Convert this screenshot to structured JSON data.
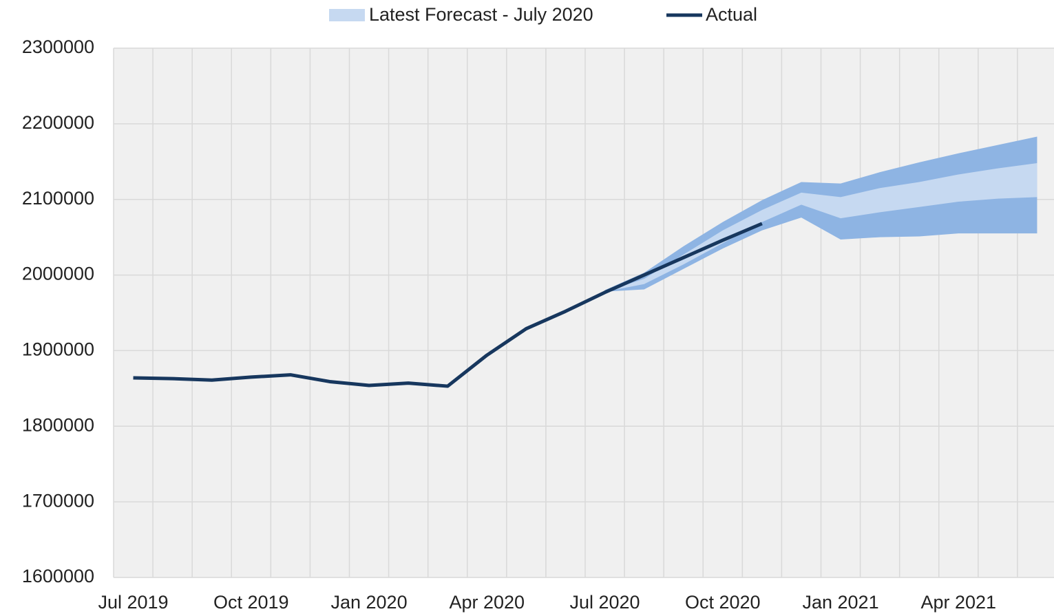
{
  "chart_data": {
    "type": "line",
    "categories": [
      "Jul 2019",
      null,
      null,
      "Oct 2019",
      null,
      null,
      "Jan 2020",
      null,
      null,
      "Apr 2020",
      null,
      null,
      "Jul 2020",
      null,
      null,
      "Oct 2020",
      null,
      null,
      "Jan 2021",
      null,
      null,
      "Apr 2021",
      null,
      null
    ],
    "ylim": [
      1600000,
      2300000
    ],
    "yticks": [
      1600000,
      1700000,
      1800000,
      1900000,
      2000000,
      2100000,
      2200000,
      2300000
    ],
    "grid": true,
    "legend": "top",
    "series": [
      {
        "name": "Actual",
        "color": "#17375e",
        "values": [
          1864000,
          1863000,
          1861000,
          1865000,
          1868000,
          1859000,
          1854000,
          1857000,
          1853000,
          1894000,
          1929000,
          1952000,
          1977000,
          2000000,
          2023000,
          2046000,
          2068000,
          null,
          null,
          null,
          null,
          null,
          null,
          null
        ]
      }
    ],
    "forecast": {
      "name": "Latest Forecast - July 2020",
      "color": "#c6d9f1",
      "outer_color": "#8eb4e3",
      "high": [
        null,
        null,
        null,
        null,
        null,
        null,
        null,
        null,
        null,
        null,
        null,
        null,
        1978000,
        1995000,
        2027000,
        2059000,
        2086000,
        2109000,
        2103000,
        2115000,
        2123000,
        2133000,
        2141000,
        2148000
      ],
      "low": [
        null,
        null,
        null,
        null,
        null,
        null,
        null,
        null,
        null,
        null,
        null,
        null,
        1978000,
        1988000,
        2014000,
        2042000,
        2070000,
        2093000,
        2075000,
        2083000,
        2090000,
        2097000,
        2101000,
        2103000
      ],
      "outer_high": [
        null,
        null,
        null,
        null,
        null,
        null,
        null,
        null,
        null,
        null,
        null,
        null,
        1980000,
        2003000,
        2038000,
        2070000,
        2099000,
        2123000,
        2121000,
        2136000,
        2149000,
        2161000,
        2172000,
        2183000
      ],
      "outer_low": [
        null,
        null,
        null,
        null,
        null,
        null,
        null,
        null,
        null,
        null,
        null,
        null,
        1978000,
        1981000,
        2008000,
        2035000,
        2059000,
        2076000,
        2047000,
        2050000,
        2051000,
        2055000,
        2055000,
        2055000
      ]
    }
  }
}
